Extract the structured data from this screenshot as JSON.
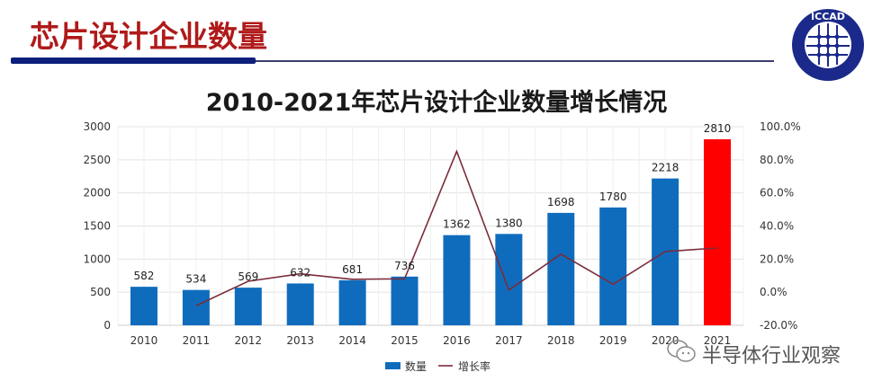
{
  "slide": {
    "title": "芯片设计企业数量",
    "logo_text": "ICCAD",
    "logo_icon": "iccad-logo-icon",
    "watermark_text": "半导体行业观察",
    "watermark_icon": "wechat-icon"
  },
  "colors": {
    "title_red": "#b01a1a",
    "rule_navy": "#0c1f7a",
    "bar_blue": "#0f6cbd",
    "bar_highlight_red": "#ff0000",
    "line_maroon": "#7b2c3a",
    "grid": "#e3e3e3"
  },
  "chart_data": {
    "type": "bar",
    "title": "2010-2021年芯片设计企业数量增长情况",
    "categories": [
      "2010",
      "2011",
      "2012",
      "2013",
      "2014",
      "2015",
      "2016",
      "2017",
      "2018",
      "2019",
      "2020",
      "2021"
    ],
    "series": [
      {
        "name": "数量",
        "kind": "bar",
        "axis": "left",
        "values": [
          582,
          534,
          569,
          632,
          681,
          736,
          1362,
          1380,
          1698,
          1780,
          2218,
          2810
        ],
        "highlight_index": 11
      },
      {
        "name": "增长率",
        "kind": "line",
        "axis": "right",
        "values": [
          null,
          -8.2,
          6.6,
          11.1,
          7.8,
          8.1,
          85.1,
          1.3,
          23.0,
          4.8,
          24.6,
          26.7
        ],
        "unit": "%"
      }
    ],
    "data_labels": [
      "582",
      "534",
      "569",
      "632",
      "681",
      "736",
      "1362",
      "1380",
      "1698",
      "1780",
      "2218",
      "2810"
    ],
    "xlabel": "",
    "ylabel": "",
    "ylim": [
      0,
      3000
    ],
    "yticks": [
      "0",
      "500",
      "1000",
      "1500",
      "2000",
      "2500",
      "3000"
    ],
    "y2lim": [
      -20,
      100
    ],
    "y2ticks": [
      "-20.0%",
      "0.0%",
      "20.0%",
      "40.0%",
      "60.0%",
      "80.0%",
      "100.0%"
    ],
    "grid": true,
    "legend": {
      "position": "bottom",
      "entries": [
        "数量",
        "增长率"
      ]
    }
  }
}
